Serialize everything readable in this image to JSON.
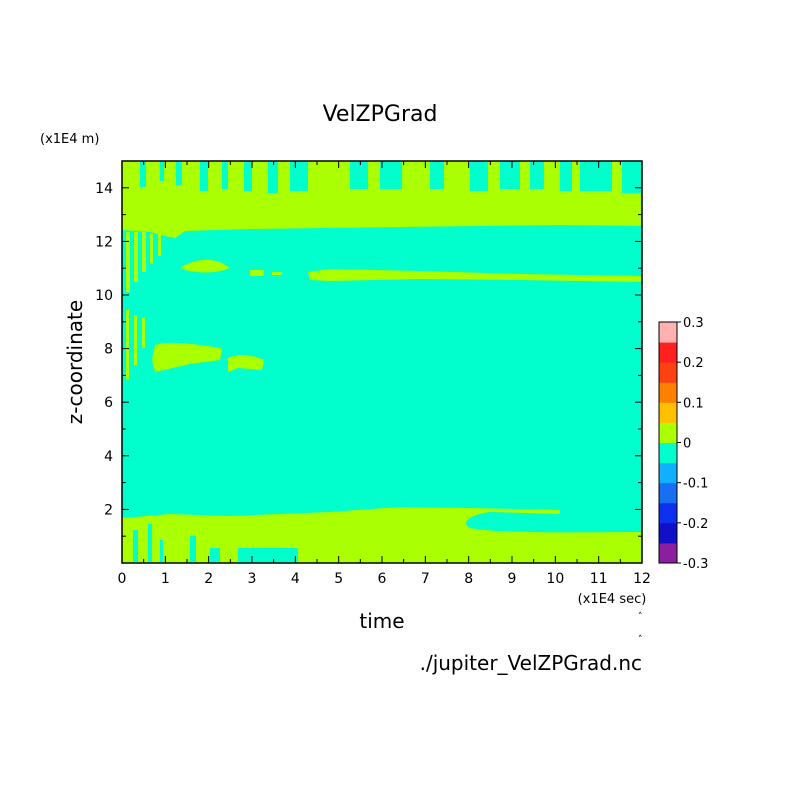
{
  "chart_data": {
    "type": "heatmap",
    "title": "VelZPGrad",
    "xlabel": "time",
    "ylabel": "z-coordinate",
    "x_unit": "(x1E4 sec)",
    "y_unit": "(x1E4 m)",
    "xlim": [
      0,
      12
    ],
    "ylim": [
      0,
      15
    ],
    "x_ticks": [
      "0",
      "1",
      "2",
      "3",
      "4",
      "5",
      "6",
      "7",
      "8",
      "9",
      "10",
      "11",
      "12"
    ],
    "y_ticks": [
      "2",
      "4",
      "6",
      "8",
      "10",
      "12",
      "14"
    ],
    "colorbar": {
      "ticks": [
        "0.3",
        "0.2",
        "0.1",
        "0",
        "-0.1",
        "-0.2",
        "-0.3"
      ],
      "levels": [
        -0.3,
        -0.25,
        -0.2,
        -0.15,
        -0.1,
        -0.05,
        0,
        0.05,
        0.1,
        0.15,
        0.2,
        0.25,
        0.3
      ],
      "colors": [
        "#8b1fa0",
        "#1010c8",
        "#1030f0",
        "#1870f0",
        "#10b0ff",
        "#00ffcc",
        "#aaff00",
        "#ffc000",
        "#ff8000",
        "#ff4010",
        "#ff2020",
        "#ffb0b0"
      ]
    },
    "field": {
      "background_level": "-0.05 to 0",
      "background_color": "#00ffcc",
      "positive_color": "#aaff00",
      "regions": [
        {
          "desc": "upper band",
          "x": [
            1.4,
            12
          ],
          "z": [
            12.3,
            13.6
          ],
          "level": "0 to 0.05"
        },
        {
          "desc": "top oscillations",
          "x": [
            0,
            12
          ],
          "z": [
            13.2,
            15
          ],
          "level": "0 to 0.05"
        },
        {
          "desc": "band near z=10.7",
          "x": [
            4.3,
            12
          ],
          "z": [
            10.5,
            10.8
          ],
          "level": "0 to 0.05"
        },
        {
          "desc": "band near z=11",
          "x": [
            1.4,
            2.5
          ],
          "z": [
            10.8,
            11.2
          ],
          "level": "0 to 0.05"
        },
        {
          "desc": "patch near z=7.5",
          "x": [
            0.8,
            3.3
          ],
          "z": [
            7.0,
            8.0
          ],
          "level": "0 to 0.05"
        },
        {
          "desc": "lower band",
          "x": [
            0,
            12
          ],
          "z": [
            0,
            2.0
          ],
          "level": "0 to 0.05"
        }
      ]
    }
  },
  "source_file": "./jupiter_VelZPGrad.nc"
}
